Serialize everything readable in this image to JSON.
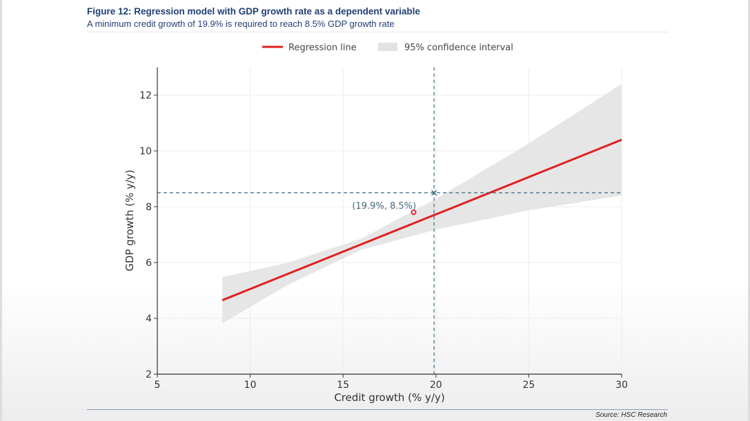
{
  "header": {
    "title": "Figure 12: Regression model with GDP growth rate as a dependent variable",
    "subtitle": "A minimum credit growth of 19.9% is required to reach 8.5% GDP growth rate"
  },
  "footer": {
    "source": "Source: HSC Research"
  },
  "chart_data": {
    "type": "line",
    "xlabel": "Credit growth (% y/y)",
    "ylabel": "GDP growth (% y/y)",
    "xlim": [
      5,
      30
    ],
    "ylim": [
      2,
      13
    ],
    "xticks": [
      5,
      10,
      15,
      20,
      25,
      30
    ],
    "yticks": [
      2,
      4,
      6,
      8,
      10,
      12
    ],
    "grid": true,
    "legend": {
      "placement": "top-center",
      "entries": [
        "Regression line",
        "95% confidence interval"
      ]
    },
    "regression_line": {
      "x": [
        8.5,
        30
      ],
      "y": [
        4.65,
        10.4
      ]
    },
    "confidence_interval": {
      "x": [
        8.5,
        12,
        16,
        20,
        25,
        30
      ],
      "lower": [
        3.82,
        5.19,
        6.46,
        7.18,
        7.87,
        8.4
      ],
      "upper": [
        5.48,
        5.99,
        6.86,
        8.28,
        10.27,
        12.4
      ]
    },
    "threshold": {
      "x": 19.9,
      "y": 8.5,
      "label": "(19.9%, 8.5%)"
    },
    "marker_point": {
      "x": 18.8,
      "y": 7.8
    },
    "colors": {
      "line": "#e02020",
      "band": "#e2e2e2",
      "threshold": "#3a6a80"
    }
  }
}
